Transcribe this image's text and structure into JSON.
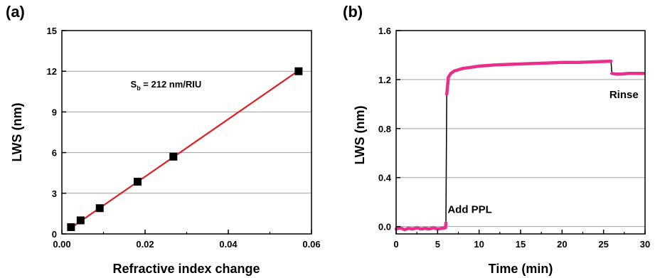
{
  "chart_data": [
    {
      "panel_label": "(a)",
      "type": "scatter",
      "xlabel": "Refractive index change",
      "ylabel": "LWS (nm)",
      "xlim": [
        0.0,
        0.06
      ],
      "ylim": [
        0,
        15
      ],
      "xticks": [
        "0.00",
        "0.02",
        "0.04",
        "0.06"
      ],
      "yticks": [
        "0",
        "3",
        "6",
        "9",
        "12",
        "15"
      ],
      "grid": "horizontal",
      "series": [
        {
          "marker": "square",
          "color": "#000000",
          "x": [
            0.0022,
            0.0045,
            0.0091,
            0.0182,
            0.0268,
            0.0569
          ],
          "y": [
            0.5,
            1.0,
            1.9,
            3.85,
            5.7,
            12.0
          ]
        }
      ],
      "fit_line": {
        "color": "#e02020",
        "x": [
          0.0022,
          0.0569
        ],
        "y": [
          0.45,
          12.05
        ]
      },
      "annotation": {
        "text_main": "S",
        "text_sub": "b",
        "text_rest": " = 212 nm/RIU",
        "x": 0.0165,
        "y": 10.8
      }
    },
    {
      "panel_label": "(b)",
      "type": "line",
      "xlabel": "Time (min)",
      "ylabel": "LWS (nm)",
      "xlim": [
        0,
        30
      ],
      "ylim": [
        -0.06,
        1.6
      ],
      "xticks": [
        "0",
        "5",
        "10",
        "15",
        "20",
        "25",
        "30"
      ],
      "yticks": [
        "0.0",
        "0.4",
        "0.8",
        "1.2",
        "1.6"
      ],
      "grid": "horizontal",
      "series": [
        {
          "color": "#e8308a",
          "x": [
            0,
            0.5,
            1,
            1.5,
            2,
            2.5,
            3,
            3.5,
            4,
            4.5,
            5,
            5.5,
            5.95,
            6.0,
            6.1,
            6.3,
            6.6,
            7,
            8,
            9,
            10,
            12,
            14,
            16,
            18,
            20,
            22,
            24,
            25.9,
            26.0,
            26.5,
            27,
            28,
            29,
            29.8
          ],
          "y": [
            -0.02,
            -0.01,
            -0.025,
            -0.015,
            -0.02,
            -0.01,
            -0.02,
            -0.015,
            -0.02,
            -0.01,
            -0.02,
            -0.015,
            -0.01,
            0.03,
            1.08,
            1.22,
            1.25,
            1.27,
            1.29,
            1.3,
            1.31,
            1.32,
            1.325,
            1.33,
            1.335,
            1.34,
            1.34,
            1.345,
            1.35,
            1.25,
            1.245,
            1.245,
            1.25,
            1.25,
            1.25
          ]
        }
      ],
      "annotations": [
        {
          "text": "Add PPL",
          "x": 6.2,
          "y": 0.11
        },
        {
          "text": "Rinse",
          "x": 25.7,
          "y": 1.05
        }
      ]
    }
  ]
}
